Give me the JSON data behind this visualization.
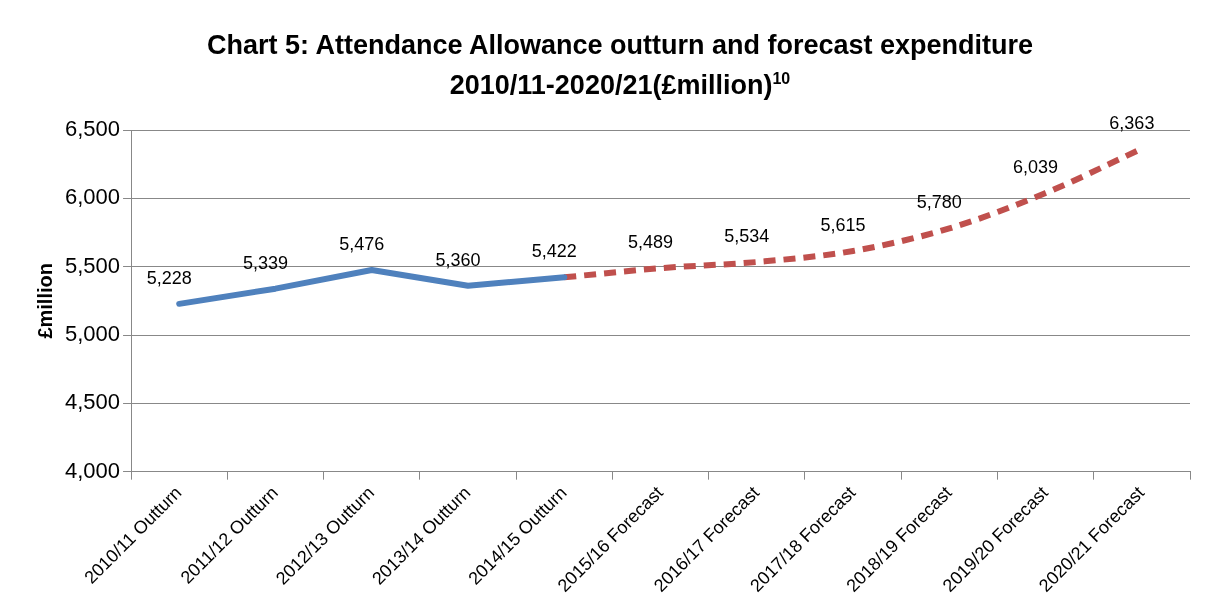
{
  "chart_data": {
    "type": "line",
    "title": "Chart 5: Attendance Allowance outturn and forecast expenditure 2010/11-2020/21(£million)$^{10}$",
    "ylabel": "£million",
    "categories": [
      "2010/11 Outturn",
      "2011/12 Outturn",
      "2012/13 Outturn",
      "2013/14 Outturn",
      "2014/15 Outturn",
      "2015/16 Forecast",
      "2016/17 Forecast",
      "2017/18 Forecast",
      "2018/19 Forecast",
      "2019/20 Forecast",
      "2020/21 Forecast"
    ],
    "series": [
      {
        "color": "#4f81bd",
        "line_style": "solid",
        "values": [
          5228,
          5339,
          5476,
          5360,
          5422,
          null,
          null,
          null,
          null,
          null,
          null
        ],
        "value_labels": [
          "5,228",
          "5,339",
          "5,476",
          "5,360",
          null,
          null,
          null,
          null,
          null,
          null,
          null
        ]
      },
      {
        "color": "#c0504d",
        "line_style": "dashed",
        "values": [
          null,
          null,
          null,
          null,
          5422,
          5489,
          5534,
          5615,
          5780,
          6039,
          6363
        ],
        "value_labels": [
          null,
          null,
          null,
          null,
          "5,422",
          "5,489",
          "5,534",
          "5,615",
          "5,780",
          "6,039",
          "6,363"
        ]
      }
    ],
    "ylim": [
      4000,
      6500
    ],
    "yticks": [
      {
        "value": 4000,
        "label": "4,000"
      },
      {
        "value": 4500,
        "label": "4,500"
      },
      {
        "value": 5000,
        "label": "5,000"
      },
      {
        "value": 5500,
        "label": "5,500"
      },
      {
        "value": 6000,
        "label": "6,000"
      },
      {
        "value": 6500,
        "label": "6,500"
      }
    ],
    "grid": "y",
    "legend": false,
    "marker": "none"
  }
}
